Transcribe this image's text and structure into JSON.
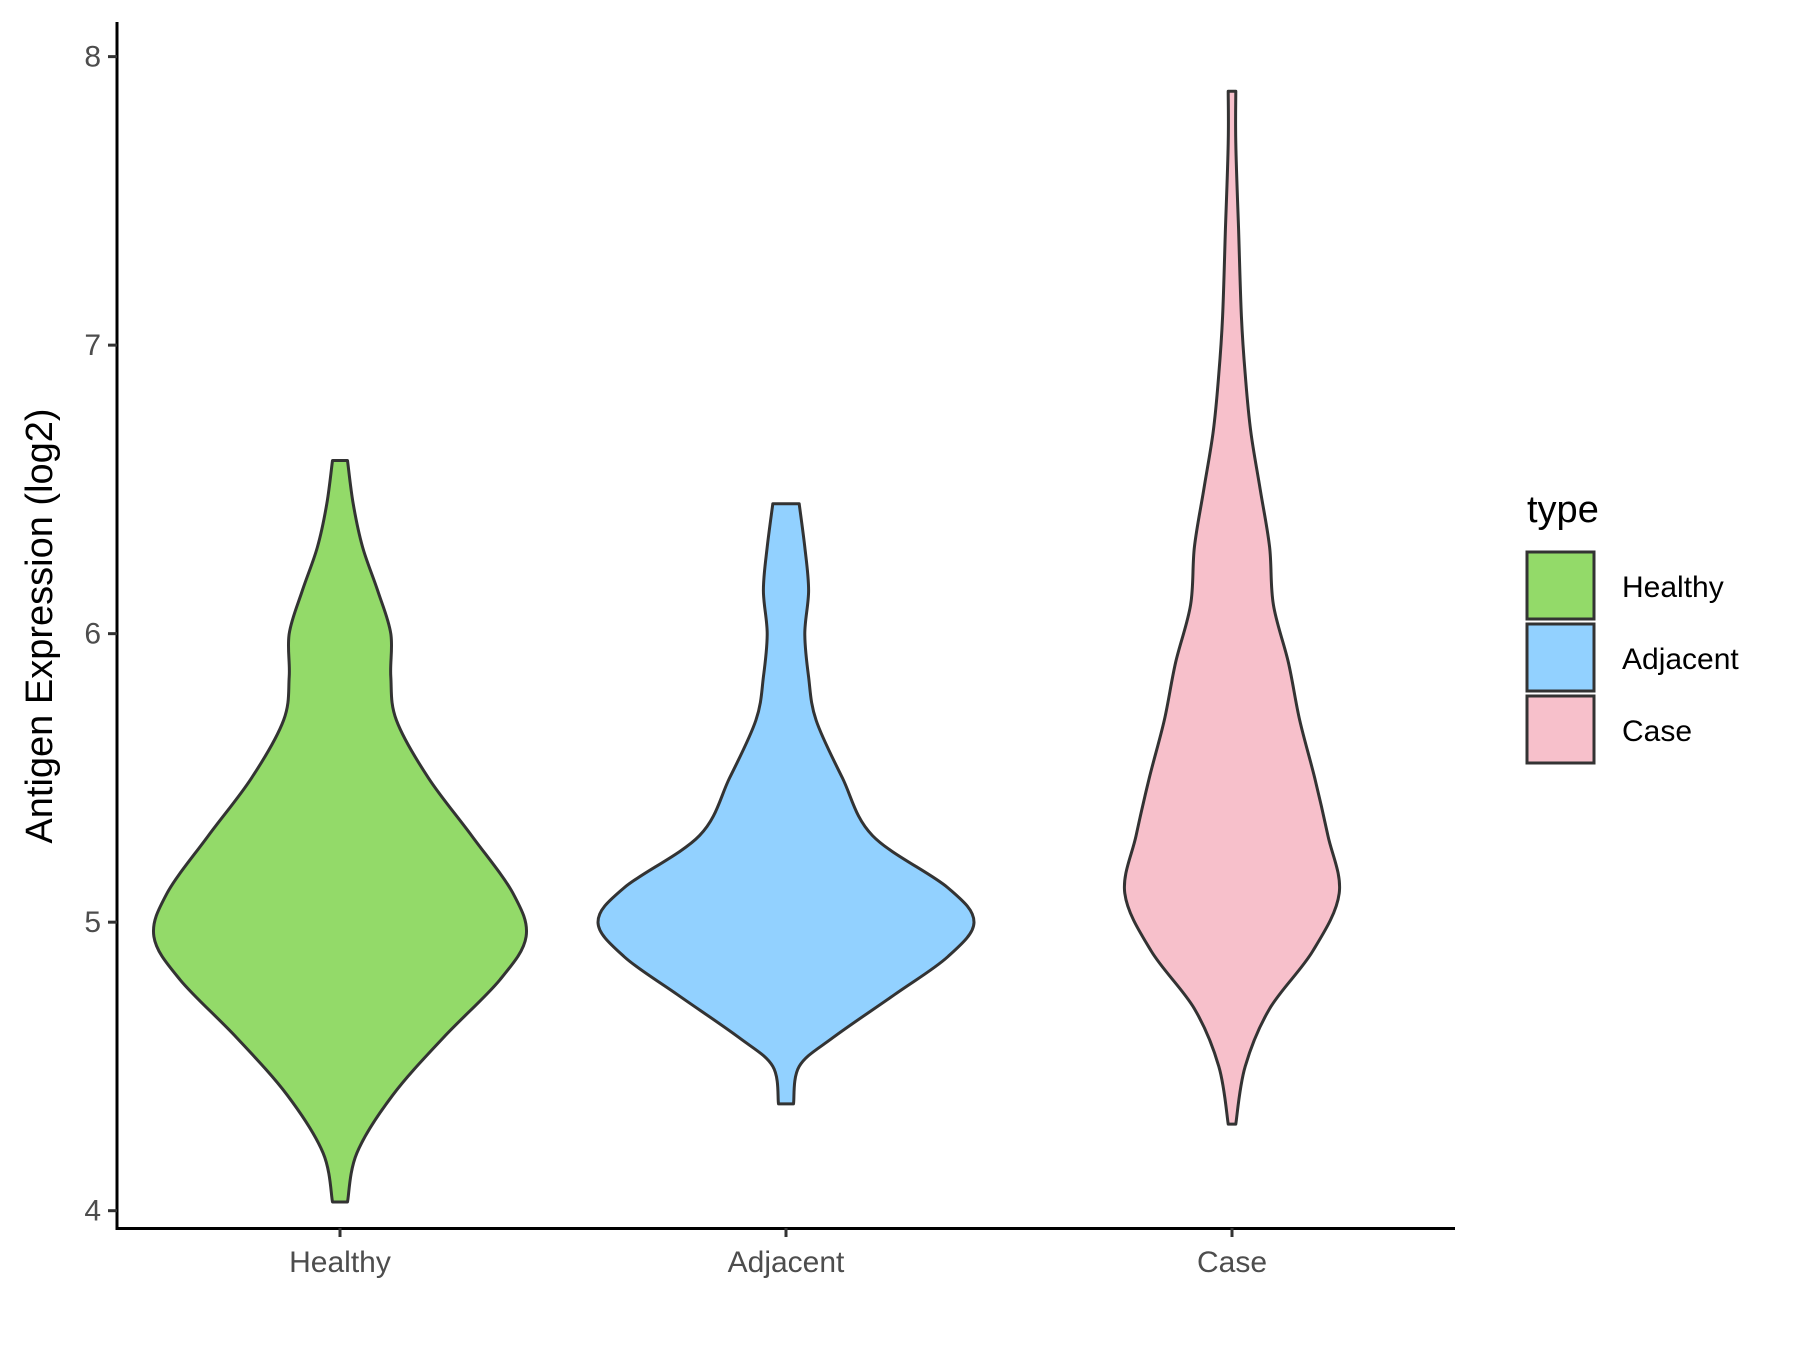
{
  "chart_data": {
    "type": "violin",
    "title": "",
    "xlabel": "",
    "ylabel": "Antigen Expression (log2)",
    "ylim": [
      3.94,
      8.12
    ],
    "yticks": [
      4,
      5,
      6,
      7,
      8
    ],
    "categories": [
      "Healthy",
      "Adjacent",
      "Case"
    ],
    "legend": {
      "title": "type",
      "position": "right",
      "entries": [
        "Healthy",
        "Adjacent",
        "Case"
      ]
    },
    "grid": false,
    "series": [
      {
        "category": "Healthy",
        "color": "#93DA69",
        "min": 4.03,
        "max": 6.6,
        "profile": [
          [
            4.03,
            0.04
          ],
          [
            4.2,
            0.09
          ],
          [
            4.4,
            0.28
          ],
          [
            4.6,
            0.55
          ],
          [
            4.8,
            0.85
          ],
          [
            4.95,
            0.99
          ],
          [
            5.1,
            0.92
          ],
          [
            5.3,
            0.7
          ],
          [
            5.5,
            0.47
          ],
          [
            5.7,
            0.3
          ],
          [
            5.85,
            0.27
          ],
          [
            6.0,
            0.27
          ],
          [
            6.15,
            0.2
          ],
          [
            6.3,
            0.12
          ],
          [
            6.45,
            0.07
          ],
          [
            6.6,
            0.04
          ]
        ]
      },
      {
        "category": "Adjacent",
        "color": "#92D1FF",
        "min": 4.37,
        "max": 6.45,
        "profile": [
          [
            4.37,
            0.04
          ],
          [
            4.5,
            0.07
          ],
          [
            4.6,
            0.25
          ],
          [
            4.75,
            0.58
          ],
          [
            4.88,
            0.86
          ],
          [
            5.0,
            1.0
          ],
          [
            5.12,
            0.86
          ],
          [
            5.3,
            0.46
          ],
          [
            5.5,
            0.3
          ],
          [
            5.7,
            0.16
          ],
          [
            5.85,
            0.12
          ],
          [
            6.0,
            0.1
          ],
          [
            6.15,
            0.12
          ],
          [
            6.3,
            0.1
          ],
          [
            6.45,
            0.07
          ]
        ]
      },
      {
        "category": "Case",
        "color": "#F7C0CB",
        "min": 4.3,
        "max": 7.88,
        "profile": [
          [
            4.3,
            0.02
          ],
          [
            4.5,
            0.07
          ],
          [
            4.7,
            0.2
          ],
          [
            4.9,
            0.43
          ],
          [
            5.1,
            0.57
          ],
          [
            5.3,
            0.51
          ],
          [
            5.5,
            0.44
          ],
          [
            5.7,
            0.36
          ],
          [
            5.9,
            0.3
          ],
          [
            6.1,
            0.22
          ],
          [
            6.3,
            0.2
          ],
          [
            6.5,
            0.15
          ],
          [
            6.7,
            0.1
          ],
          [
            6.9,
            0.07
          ],
          [
            7.1,
            0.05
          ],
          [
            7.4,
            0.035
          ],
          [
            7.7,
            0.02
          ],
          [
            7.88,
            0.02
          ]
        ]
      }
    ]
  }
}
